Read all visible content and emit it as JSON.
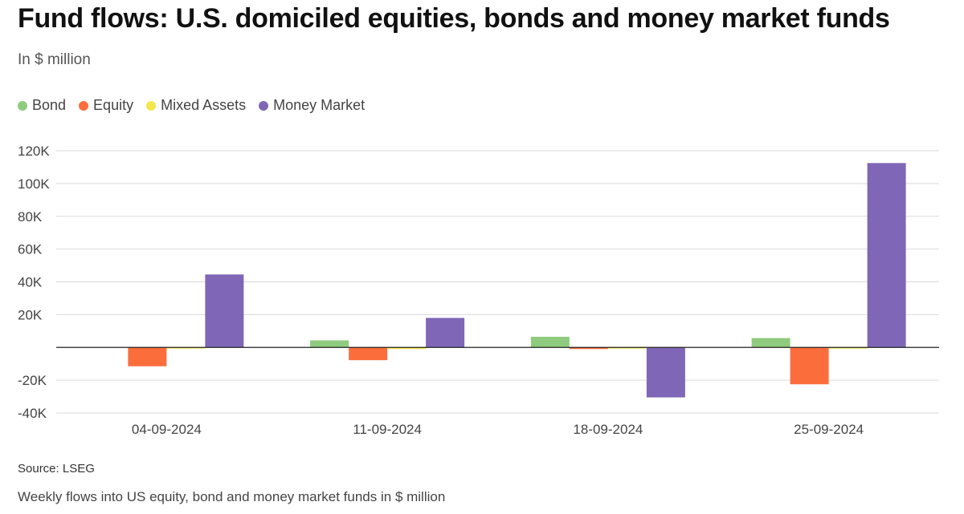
{
  "title": "Fund flows: U.S. domiciled equities, bonds and money market funds",
  "subtitle": "In $ million",
  "source": "Source: LSEG",
  "footnote": "Weekly flows into US equity, bond and money market funds in $ million",
  "chart_data": {
    "type": "bar",
    "categories": [
      "04-09-2024",
      "11-09-2024",
      "18-09-2024",
      "25-09-2024"
    ],
    "series": [
      {
        "name": "Bond",
        "color": "#8fcb7e",
        "values": [
          0,
          4300,
          6500,
          5700
        ]
      },
      {
        "name": "Equity",
        "color": "#fb6e3c",
        "values": [
          -11500,
          -7800,
          -1000,
          -22500
        ]
      },
      {
        "name": "Mixed Assets",
        "color": "#f2e74c",
        "values": [
          -300,
          -1000,
          -300,
          -300
        ]
      },
      {
        "name": "Money Market",
        "color": "#7f66b6",
        "values": [
          44500,
          18000,
          -30500,
          112500
        ]
      }
    ],
    "ylim": [
      -40000,
      120000
    ],
    "yticks": [
      -40000,
      -20000,
      20000,
      40000,
      60000,
      80000,
      100000,
      120000
    ],
    "ytick_labels": [
      "-40K",
      "-20K",
      "20K",
      "40K",
      "60K",
      "80K",
      "100K",
      "120K"
    ],
    "grid": true,
    "legend_position": "top-left"
  }
}
